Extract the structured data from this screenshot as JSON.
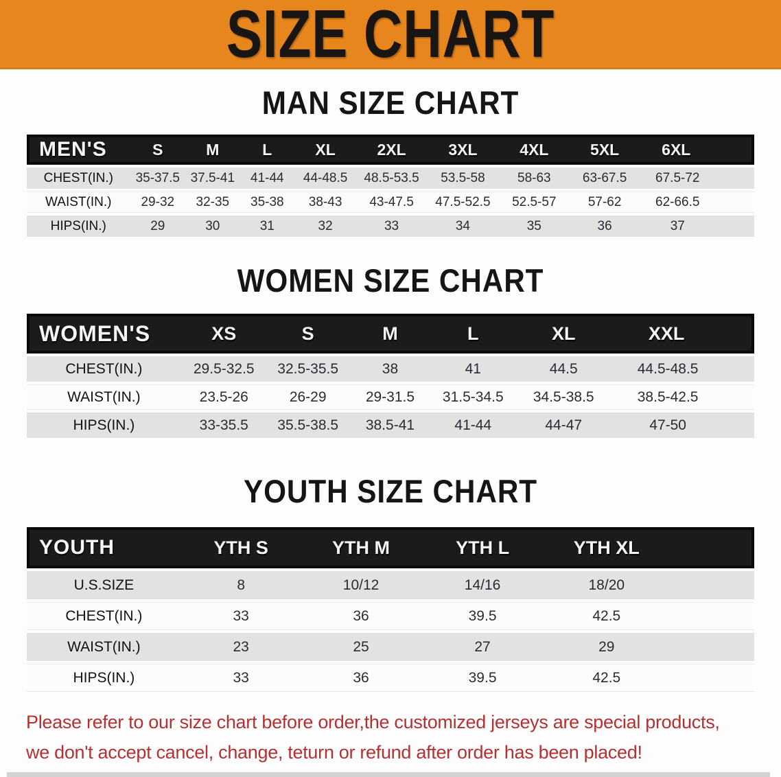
{
  "banner": {
    "title": "SIZE CHART",
    "bg_color": "#E8861E",
    "text_color": "#191513"
  },
  "chart_data": [
    {
      "type": "table",
      "title": "MAN SIZE CHART",
      "header_label": "MEN'S",
      "columns": [
        "S",
        "M",
        "L",
        "XL",
        "2XL",
        "3XL",
        "4XL",
        "5XL",
        "6XL"
      ],
      "rows": [
        {
          "label": "CHEST(IN.)",
          "values": [
            "35-37.5",
            "37.5-41",
            "41-44",
            "44-48.5",
            "48.5-53.5",
            "53.5-58",
            "58-63",
            "63-67.5",
            "67.5-72"
          ]
        },
        {
          "label": "WAIST(IN.)",
          "values": [
            "29-32",
            "32-35",
            "35-38",
            "38-43",
            "43-47.5",
            "47.5-52.5",
            "52.5-57",
            "57-62",
            "62-66.5"
          ]
        },
        {
          "label": "HIPS(IN.)",
          "values": [
            "29",
            "30",
            "31",
            "32",
            "33",
            "34",
            "35",
            "36",
            "37"
          ]
        }
      ]
    },
    {
      "type": "table",
      "title": "WOMEN SIZE CHART",
      "header_label": "WOMEN'S",
      "columns": [
        "XS",
        "S",
        "M",
        "L",
        "XL",
        "XXL"
      ],
      "rows": [
        {
          "label": "CHEST(IN.)",
          "values": [
            "29.5-32.5",
            "32.5-35.5",
            "38",
            "41",
            "44.5",
            "44.5-48.5"
          ]
        },
        {
          "label": "WAIST(IN.)",
          "values": [
            "23.5-26",
            "26-29",
            "29-31.5",
            "31.5-34.5",
            "34.5-38.5",
            "38.5-42.5"
          ]
        },
        {
          "label": "HIPS(IN.)",
          "values": [
            "33-35.5",
            "35.5-38.5",
            "38.5-41",
            "41-44",
            "44-47",
            "47-50"
          ]
        }
      ]
    },
    {
      "type": "table",
      "title": "YOUTH SIZE CHART",
      "header_label": "YOUTH",
      "columns": [
        "YTH S",
        "YTH M",
        "YTH L",
        "YTH XL"
      ],
      "rows": [
        {
          "label": "U.S.SIZE",
          "values": [
            "8",
            "10/12",
            "14/16",
            "18/20"
          ]
        },
        {
          "label": "CHEST(IN.)",
          "values": [
            "33",
            "36",
            "39.5",
            "42.5"
          ]
        },
        {
          "label": "WAIST(IN.)",
          "values": [
            "23",
            "25",
            "27",
            "29"
          ]
        },
        {
          "label": "HIPS(IN.)",
          "values": [
            "33",
            "36",
            "39.5",
            "42.5"
          ]
        }
      ]
    }
  ],
  "footer": {
    "line1": "Please refer to our size chart before order,the customized jerseys are special products,",
    "line2": "we don't accept cancel, change, teturn or refund after order has been placed!",
    "text_color": "#B53030"
  },
  "colors": {
    "stripe_gray": "#E2E2E2",
    "header_black": "#1B1B1B",
    "banner_orange": "#E8861E"
  }
}
